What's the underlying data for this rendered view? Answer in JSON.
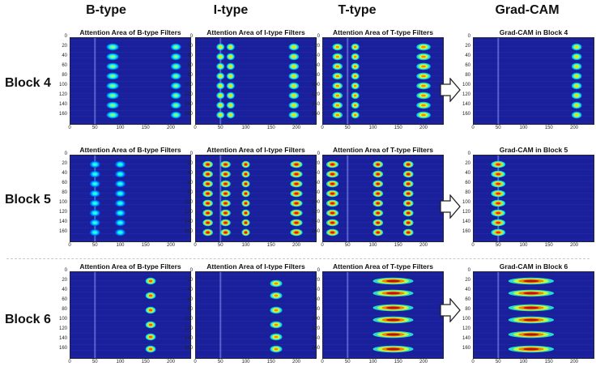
{
  "column_headers": [
    "B-type",
    "I-type",
    "T-type",
    "Grad-CAM"
  ],
  "row_headers": [
    "Block 4",
    "Block 5",
    "Block 6"
  ],
  "panel_titles": [
    [
      "Attention Area of B-type Filters",
      "Attention Area of I-type Filters",
      "Attention Area of T-type Filters",
      "Grad-CAM in Block 4"
    ],
    [
      "Attention Area of B-type Filters",
      "Attention Area of I-type Filters",
      "Attention Area of T-type Filters",
      "Grad-CAM in Block 5"
    ],
    [
      "Attention Area of B-type Filters",
      "Attention Area of I-type Filters",
      "Attention Area of T-type Filters",
      "Grad-CAM in Block 6"
    ]
  ],
  "axes": {
    "y_ticks": [
      "0",
      "20",
      "40",
      "60",
      "80",
      "100",
      "120",
      "140",
      "160"
    ],
    "x_ticks": [
      "0",
      "50",
      "100",
      "150",
      "200"
    ],
    "x_range": [
      0,
      240
    ],
    "y_range": [
      0,
      180
    ]
  },
  "colors": {
    "background": "#1a1f9a",
    "colormap": "jet"
  },
  "chart_data": {
    "type": "heatmap",
    "description_free": true,
    "panels": [
      {
        "row": 0,
        "col": 0,
        "bands": [
          [
            85,
            12
          ],
          [
            210,
            10
          ]
        ],
        "rows": [
          20,
          40,
          60,
          80,
          100,
          120,
          140,
          160
        ],
        "intensity": 0.45
      },
      {
        "row": 0,
        "col": 1,
        "bands": [
          [
            50,
            8
          ],
          [
            70,
            8
          ],
          [
            195,
            10
          ]
        ],
        "rows": [
          20,
          40,
          60,
          80,
          100,
          120,
          140,
          160
        ],
        "intensity": 0.6
      },
      {
        "row": 0,
        "col": 2,
        "bands": [
          [
            30,
            10
          ],
          [
            65,
            8
          ],
          [
            200,
            14
          ]
        ],
        "rows": [
          20,
          40,
          60,
          80,
          100,
          120,
          140,
          160
        ],
        "intensity": 0.7
      },
      {
        "row": 0,
        "col": 3,
        "bands": [
          [
            205,
            10
          ]
        ],
        "rows": [
          20,
          40,
          60,
          80,
          100,
          120,
          140,
          160
        ],
        "intensity": 0.6
      },
      {
        "row": 1,
        "col": 0,
        "bands": [
          [
            50,
            10
          ],
          [
            100,
            10
          ]
        ],
        "rows": [
          20,
          40,
          60,
          80,
          100,
          120,
          140,
          160
        ],
        "intensity": 0.35
      },
      {
        "row": 1,
        "col": 1,
        "bands": [
          [
            25,
            10
          ],
          [
            60,
            10
          ],
          [
            100,
            8
          ],
          [
            200,
            12
          ]
        ],
        "rows": [
          20,
          40,
          60,
          80,
          100,
          120,
          140,
          160
        ],
        "intensity": 0.85
      },
      {
        "row": 1,
        "col": 2,
        "bands": [
          [
            20,
            12
          ],
          [
            110,
            10
          ],
          [
            170,
            10
          ]
        ],
        "rows": [
          20,
          40,
          60,
          80,
          100,
          120,
          140,
          160
        ],
        "intensity": 0.85
      },
      {
        "row": 1,
        "col": 3,
        "bands": [
          [
            50,
            14
          ]
        ],
        "rows": [
          20,
          40,
          60,
          80,
          100,
          120,
          140,
          160
        ],
        "intensity": 0.8
      },
      {
        "row": 2,
        "col": 0,
        "bands": [
          [
            160,
            10
          ]
        ],
        "rows": [
          20,
          50,
          80,
          110,
          135,
          160
        ],
        "intensity": 0.75
      },
      {
        "row": 2,
        "col": 1,
        "bands": [
          [
            160,
            12
          ]
        ],
        "rows": [
          25,
          50,
          80,
          110,
          135,
          160
        ],
        "intensity": 0.7
      },
      {
        "row": 2,
        "col": 2,
        "bands": [
          [
            140,
            40
          ]
        ],
        "rows": [
          20,
          45,
          75,
          100,
          130,
          160
        ],
        "intensity": 0.9
      },
      {
        "row": 2,
        "col": 3,
        "bands": [
          [
            115,
            45
          ]
        ],
        "rows": [
          20,
          45,
          75,
          100,
          130,
          160
        ],
        "intensity": 0.9
      }
    ]
  }
}
